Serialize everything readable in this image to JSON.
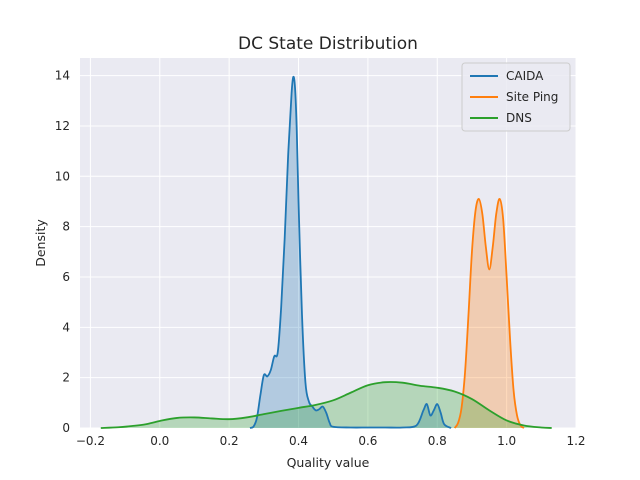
{
  "chart_data": {
    "type": "area",
    "title": "DC State Distribution",
    "xlabel": "Quality value",
    "ylabel": "Density",
    "xlim": [
      -0.23,
      1.2
    ],
    "ylim": [
      0,
      14.7
    ],
    "xticks": [
      -0.2,
      0.0,
      0.2,
      0.4,
      0.6,
      0.8,
      1.0,
      1.2
    ],
    "xtick_labels": [
      "−0.2",
      "0.0",
      "0.2",
      "0.4",
      "0.6",
      "0.8",
      "1.0",
      "1.2"
    ],
    "yticks": [
      0,
      2,
      4,
      6,
      8,
      10,
      12,
      14
    ],
    "ytick_labels": [
      "0",
      "2",
      "4",
      "6",
      "8",
      "10",
      "12",
      "14"
    ],
    "grid": true,
    "legend_position": "top-right",
    "series": [
      {
        "name": "CAIDA",
        "color": "#1f77b4",
        "x": [
          0.26,
          0.27,
          0.28,
          0.29,
          0.3,
          0.31,
          0.32,
          0.33,
          0.34,
          0.35,
          0.36,
          0.37,
          0.38,
          0.385,
          0.39,
          0.395,
          0.4,
          0.41,
          0.42,
          0.43,
          0.44,
          0.45,
          0.46,
          0.47,
          0.48,
          0.49,
          0.5,
          0.55,
          0.6,
          0.65,
          0.7,
          0.74,
          0.76,
          0.77,
          0.78,
          0.79,
          0.8,
          0.81,
          0.82,
          0.84
        ],
        "y": [
          0.0,
          0.05,
          0.4,
          1.3,
          2.1,
          2.05,
          2.3,
          2.85,
          3.0,
          4.8,
          7.5,
          10.8,
          13.3,
          13.95,
          13.5,
          11.8,
          9.0,
          4.5,
          1.8,
          1.05,
          0.85,
          0.7,
          0.75,
          0.85,
          0.6,
          0.2,
          0.05,
          0.02,
          0.02,
          0.02,
          0.02,
          0.1,
          0.7,
          0.95,
          0.5,
          0.7,
          0.95,
          0.6,
          0.15,
          0.0
        ]
      },
      {
        "name": "Site Ping",
        "color": "#ff7f0e",
        "x": [
          0.85,
          0.86,
          0.87,
          0.88,
          0.89,
          0.9,
          0.91,
          0.92,
          0.93,
          0.94,
          0.95,
          0.96,
          0.97,
          0.98,
          0.99,
          1.0,
          1.01,
          1.02,
          1.03,
          1.04,
          1.05
        ],
        "y": [
          0.0,
          0.2,
          0.8,
          2.2,
          4.5,
          7.0,
          8.6,
          9.1,
          8.5,
          7.2,
          6.3,
          7.2,
          8.5,
          9.1,
          8.3,
          6.0,
          3.5,
          1.5,
          0.5,
          0.1,
          0.0
        ]
      },
      {
        "name": "DNS",
        "color": "#2ca02c",
        "x": [
          -0.17,
          -0.12,
          -0.08,
          -0.04,
          0.0,
          0.05,
          0.1,
          0.15,
          0.2,
          0.25,
          0.3,
          0.35,
          0.4,
          0.45,
          0.5,
          0.55,
          0.6,
          0.65,
          0.7,
          0.75,
          0.8,
          0.85,
          0.9,
          0.95,
          1.0,
          1.05,
          1.1,
          1.13
        ],
        "y": [
          0.0,
          0.03,
          0.08,
          0.15,
          0.28,
          0.4,
          0.42,
          0.38,
          0.35,
          0.42,
          0.55,
          0.68,
          0.8,
          0.92,
          1.1,
          1.4,
          1.7,
          1.82,
          1.8,
          1.68,
          1.6,
          1.45,
          1.15,
          0.7,
          0.3,
          0.1,
          0.02,
          0.0
        ]
      }
    ]
  }
}
